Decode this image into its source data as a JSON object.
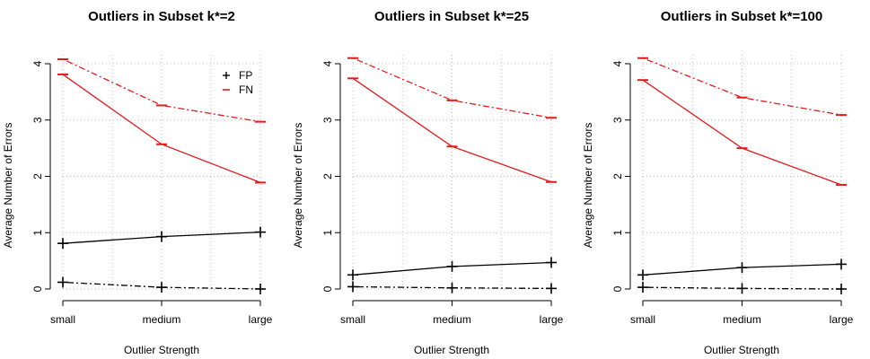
{
  "chart_data": [
    {
      "type": "line",
      "title": "Outliers in Subset k*=2",
      "xlabel": "Outlier Strength",
      "ylabel": "Average Number of Errors",
      "categories": [
        "small",
        "medium",
        "large"
      ],
      "ylim": [
        0,
        4
      ],
      "yticks": [
        "0",
        "1",
        "2",
        "3",
        "4"
      ],
      "grid": true,
      "legend": {
        "position": "top-right",
        "entries": [
          {
            "symbol": "+",
            "label": "FP",
            "color": "#000000"
          },
          {
            "symbol": "–",
            "label": "FN",
            "color": "#e41a1c"
          }
        ]
      },
      "series": [
        {
          "color": "#e41a1c",
          "dash": "dotdash",
          "values": [
            4.08,
            3.26,
            2.97
          ]
        },
        {
          "color": "#e41a1c",
          "dash": "solid",
          "values": [
            3.81,
            2.57,
            1.89
          ]
        },
        {
          "color": "#000000",
          "dash": "solid",
          "values": [
            0.81,
            0.93,
            1.01
          ]
        },
        {
          "color": "#000000",
          "dash": "dotdash",
          "values": [
            0.12,
            0.03,
            0.0
          ]
        }
      ]
    },
    {
      "type": "line",
      "title": "Outliers in Subset k*=25",
      "xlabel": "Outlier Strength",
      "ylabel": "Average Number of Errors",
      "categories": [
        "small",
        "medium",
        "large"
      ],
      "ylim": [
        0,
        4
      ],
      "yticks": [
        "0",
        "1",
        "2",
        "3",
        "4"
      ],
      "grid": true,
      "series": [
        {
          "color": "#e41a1c",
          "dash": "dotdash",
          "values": [
            4.1,
            3.35,
            3.04
          ]
        },
        {
          "color": "#e41a1c",
          "dash": "solid",
          "values": [
            3.74,
            2.53,
            1.9
          ]
        },
        {
          "color": "#000000",
          "dash": "solid",
          "values": [
            0.25,
            0.4,
            0.47
          ]
        },
        {
          "color": "#000000",
          "dash": "dotdash",
          "values": [
            0.04,
            0.02,
            0.01
          ]
        }
      ]
    },
    {
      "type": "line",
      "title": "Outliers in Subset k*=100",
      "xlabel": "Outlier Strength",
      "ylabel": "Average Number of Errors",
      "categories": [
        "small",
        "medium",
        "large"
      ],
      "ylim": [
        0,
        4
      ],
      "yticks": [
        "0",
        "1",
        "2",
        "3",
        "4"
      ],
      "grid": true,
      "series": [
        {
          "color": "#e41a1c",
          "dash": "dotdash",
          "values": [
            4.1,
            3.4,
            3.09
          ]
        },
        {
          "color": "#e41a1c",
          "dash": "solid",
          "values": [
            3.71,
            2.5,
            1.85
          ]
        },
        {
          "color": "#000000",
          "dash": "solid",
          "values": [
            0.25,
            0.38,
            0.44
          ]
        },
        {
          "color": "#000000",
          "dash": "dotdash",
          "values": [
            0.03,
            0.01,
            0.0
          ]
        }
      ]
    }
  ]
}
